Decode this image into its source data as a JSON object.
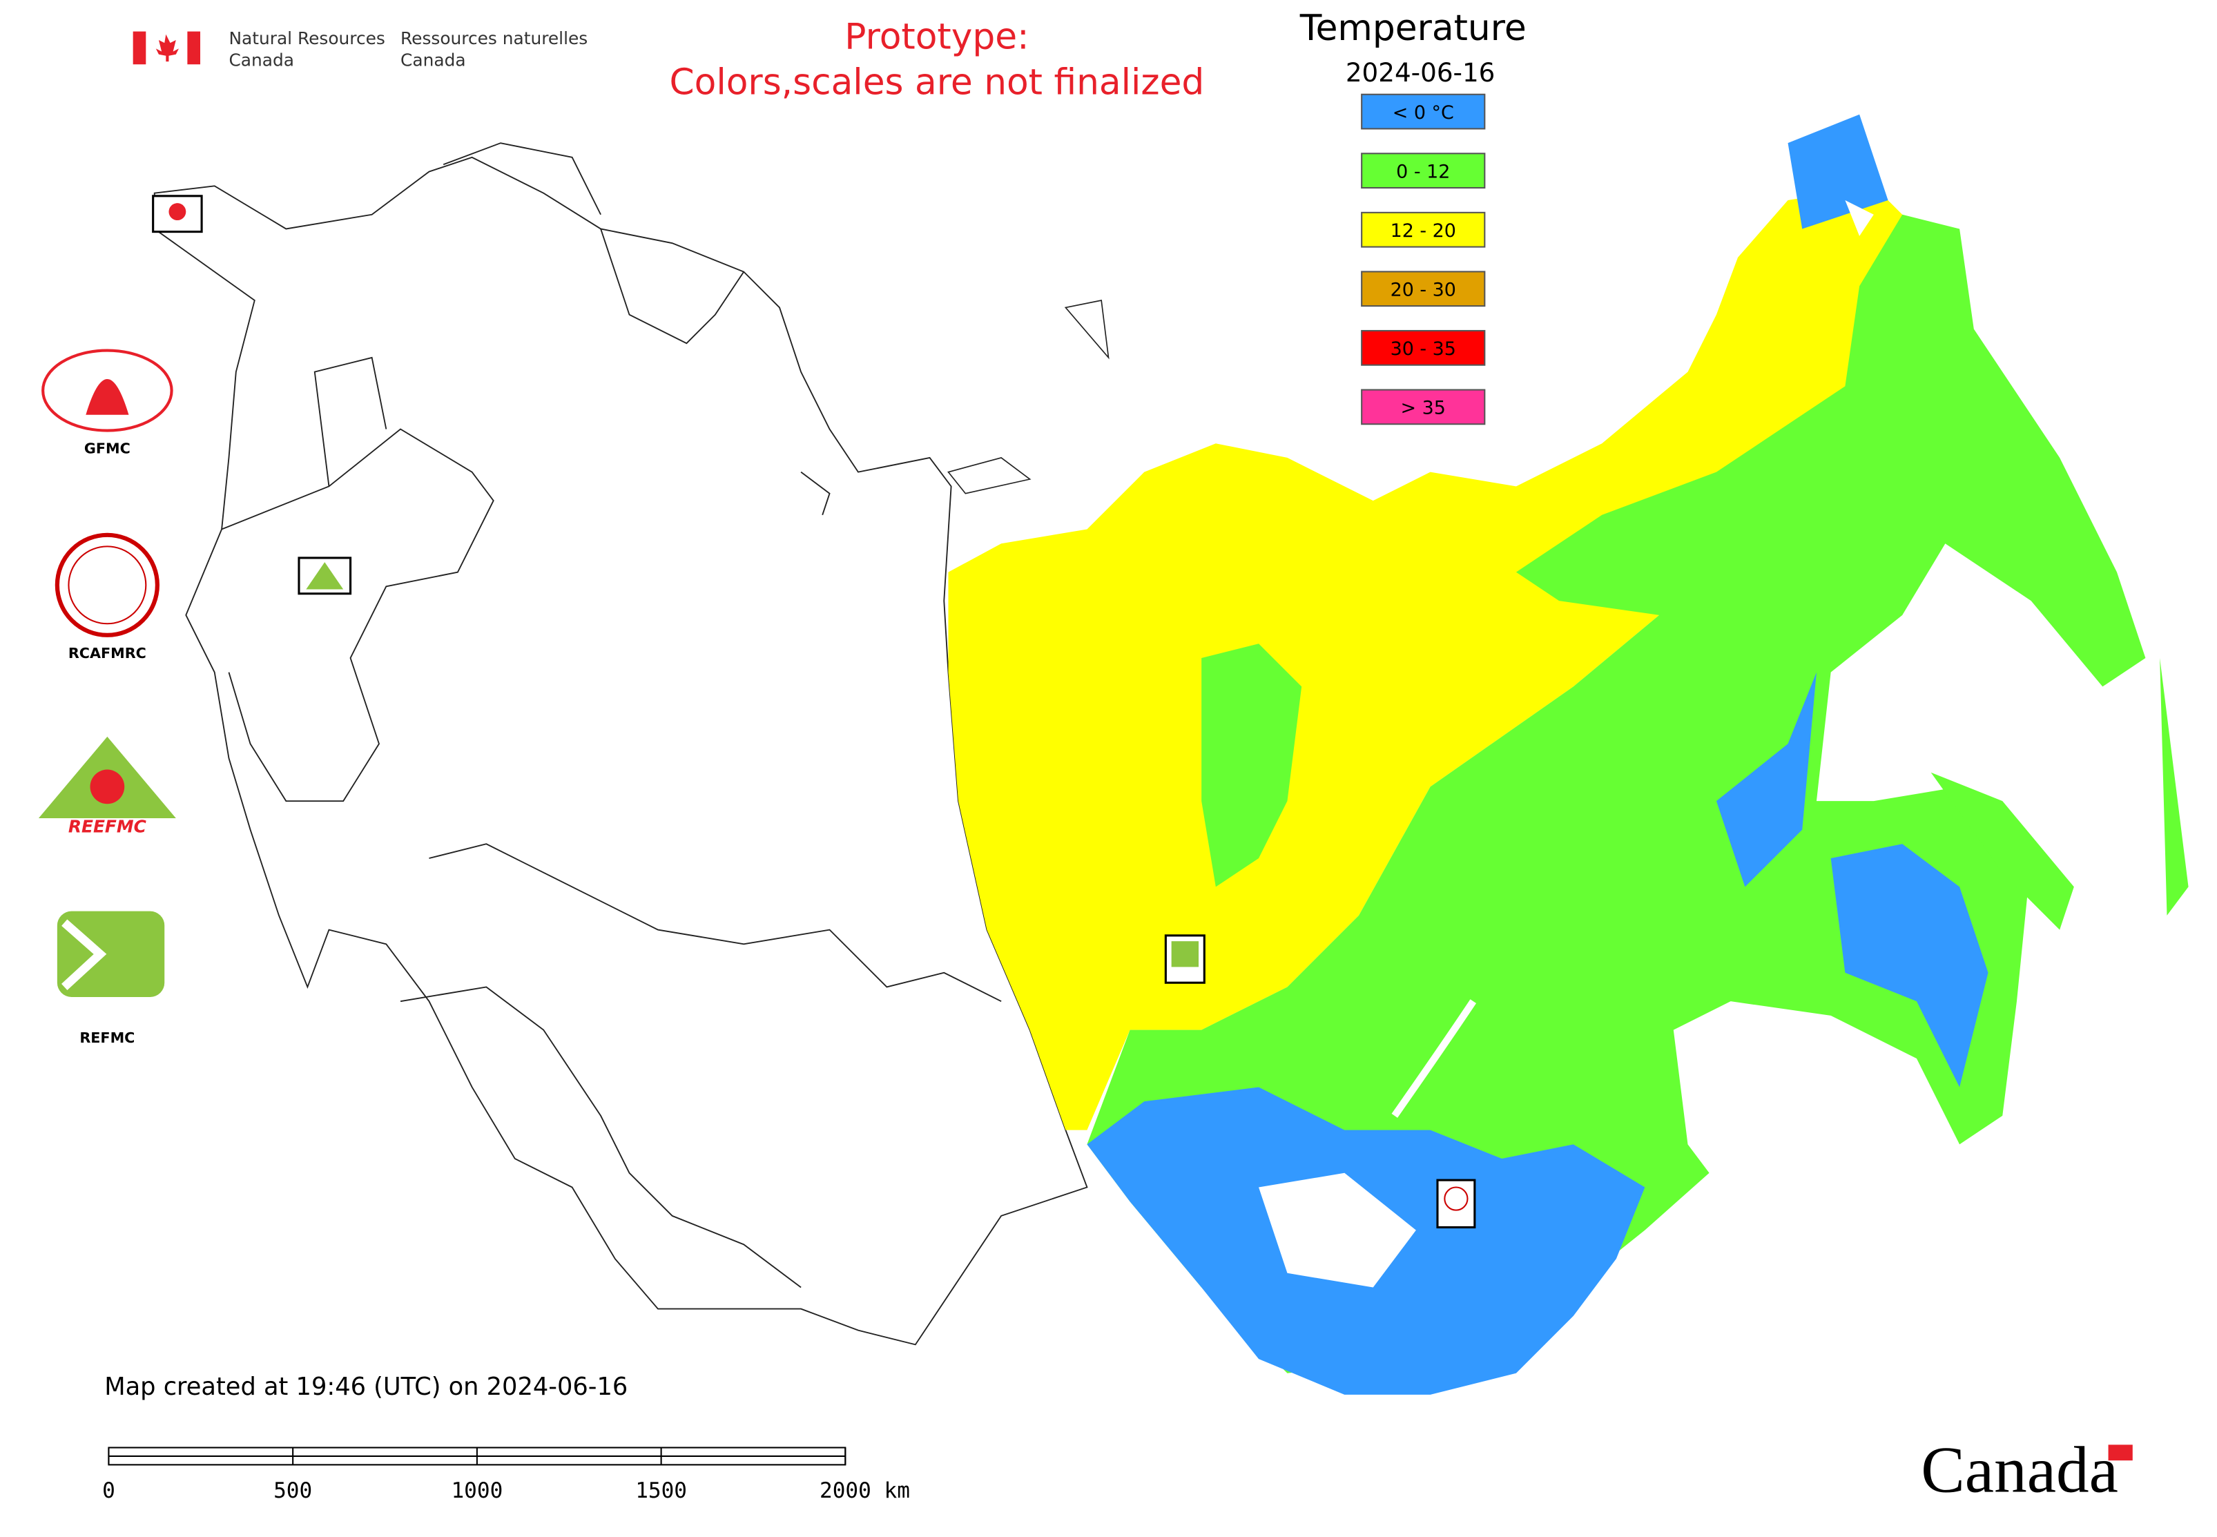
{
  "header": {
    "agency_en": [
      "Natural Resources",
      "Canada"
    ],
    "agency_fr": [
      "Ressources naturelles",
      "Canada"
    ]
  },
  "notice": [
    "Prototype:",
    "Colors,scales are not finalized"
  ],
  "legend": {
    "title": "Temperature",
    "date": "2024-06-16",
    "items": [
      {
        "label": "< 0 °C",
        "color": "#3399ff"
      },
      {
        "label": "0 - 12",
        "color": "#66ff33"
      },
      {
        "label": "12 - 20",
        "color": "#ffff00"
      },
      {
        "label": "20 - 30",
        "color": "#e0a000"
      },
      {
        "label": "30 - 35",
        "color": "#ff0000"
      },
      {
        "label": "> 35",
        "color": "#ff3399"
      }
    ]
  },
  "organizations": {
    "gfmc": "GFMC",
    "rcafmrc": "RCAFMRC",
    "reefmc_logo": "REEFMC",
    "refmc": "REFMC"
  },
  "footer": {
    "created": "Map created at 19:46 (UTC) on 2024-06-16",
    "scale_labels": [
      "0",
      "500",
      "1000",
      "1500",
      "2000 km"
    ],
    "wordmark": "Canada"
  }
}
